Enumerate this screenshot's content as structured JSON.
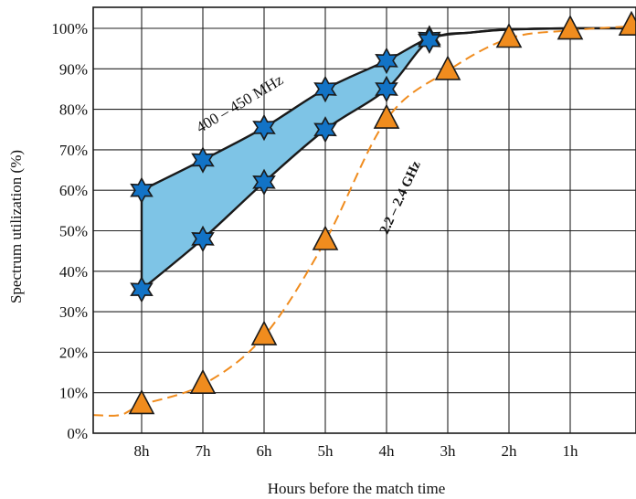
{
  "chart_data": {
    "type": "line",
    "xlabel": "Hours before the match time",
    "ylabel": "Spectrum utilization (%)",
    "categories": [
      "8h",
      "7h",
      "6h",
      "5h",
      "4h",
      "3h",
      "2h",
      "1h"
    ],
    "y_ticks": [
      "0%",
      "10%",
      "20%",
      "30%",
      "40%",
      "50%",
      "60%",
      "70%",
      "80%",
      "90%",
      "100%"
    ],
    "xlim": [
      8.5,
      -0.1
    ],
    "ylim": [
      0,
      100
    ],
    "grid": true,
    "colors": {
      "band_fill": "#7ec4e6",
      "band_line": "#1a1a1a",
      "star": "#1273c6",
      "orange": "#f08c1e"
    },
    "annotations": {
      "band_label": "400 – 450 MHz",
      "orange_label": "2.2 – 2.4 GHz"
    },
    "series": [
      {
        "name": "400 – 450 MHz",
        "marker": "star",
        "upper": {
          "x": [
            8,
            7,
            6,
            5,
            4,
            3.3
          ],
          "y": [
            60,
            67.5,
            75.5,
            85,
            92,
            97.5
          ]
        },
        "lower": {
          "x": [
            8,
            7,
            6,
            5,
            4,
            3.3
          ],
          "y": [
            35.5,
            48,
            62,
            75,
            85,
            97
          ]
        }
      },
      {
        "name": "2.2 – 2.4 GHz",
        "marker": "triangle",
        "x": [
          8,
          7,
          6,
          5,
          4,
          3,
          2,
          1,
          0
        ],
        "y": [
          7,
          12,
          24,
          47.5,
          77.5,
          89.5,
          97.5,
          99.5,
          100.5
        ]
      }
    ]
  }
}
